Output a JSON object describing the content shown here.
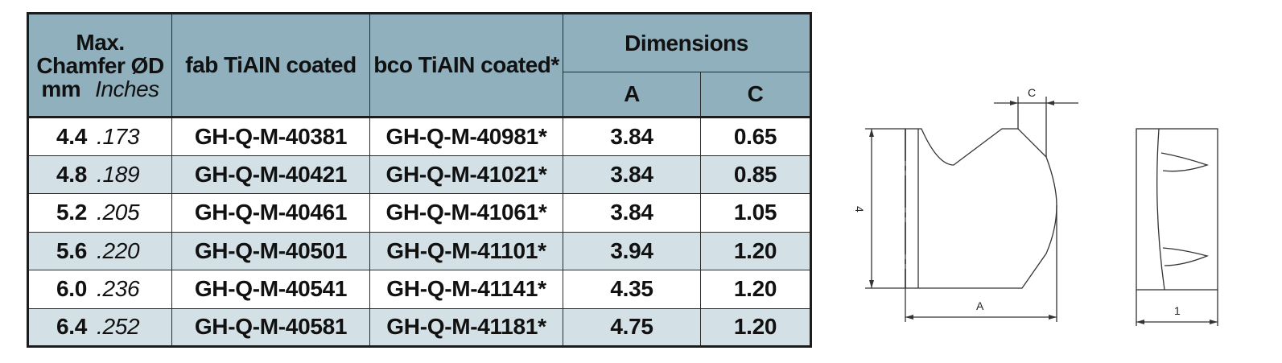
{
  "table": {
    "headers": {
      "chamfer_line1": "Max.",
      "chamfer_line2": "Chamfer ØD",
      "chamfer_mm": "mm",
      "chamfer_inches": "Inches",
      "fab": "fab TiAIN coated",
      "bco": "bco TiAIN coated*",
      "dimensions": "Dimensions",
      "dim_a": "A",
      "dim_c": "C"
    },
    "rows": [
      {
        "mm": "4.4",
        "inches": ".173",
        "fab": "GH-Q-M-40381",
        "bco": "GH-Q-M-40981*",
        "a": "3.84",
        "c": "0.65"
      },
      {
        "mm": "4.8",
        "inches": ".189",
        "fab": "GH-Q-M-40421",
        "bco": "GH-Q-M-41021*",
        "a": "3.84",
        "c": "0.85"
      },
      {
        "mm": "5.2",
        "inches": ".205",
        "fab": "GH-Q-M-40461",
        "bco": "GH-Q-M-41061*",
        "a": "3.84",
        "c": "1.05"
      },
      {
        "mm": "5.6",
        "inches": ".220",
        "fab": "GH-Q-M-40501",
        "bco": "GH-Q-M-41101*",
        "a": "3.94",
        "c": "1.20"
      },
      {
        "mm": "6.0",
        "inches": ".236",
        "fab": "GH-Q-M-40541",
        "bco": "GH-Q-M-41141*",
        "a": "4.35",
        "c": "1.20"
      },
      {
        "mm": "6.4",
        "inches": ".252",
        "fab": "GH-Q-M-40581",
        "bco": "GH-Q-M-41181*",
        "a": "4.75",
        "c": "1.20"
      }
    ]
  },
  "drawing": {
    "label_c": "C",
    "label_height": "4",
    "label_a": "A",
    "label_width": "1"
  },
  "colors": {
    "header_bg": "#8fb0bc",
    "stripe_bg": "#d3e0e6",
    "border": "#1c1c1c"
  }
}
